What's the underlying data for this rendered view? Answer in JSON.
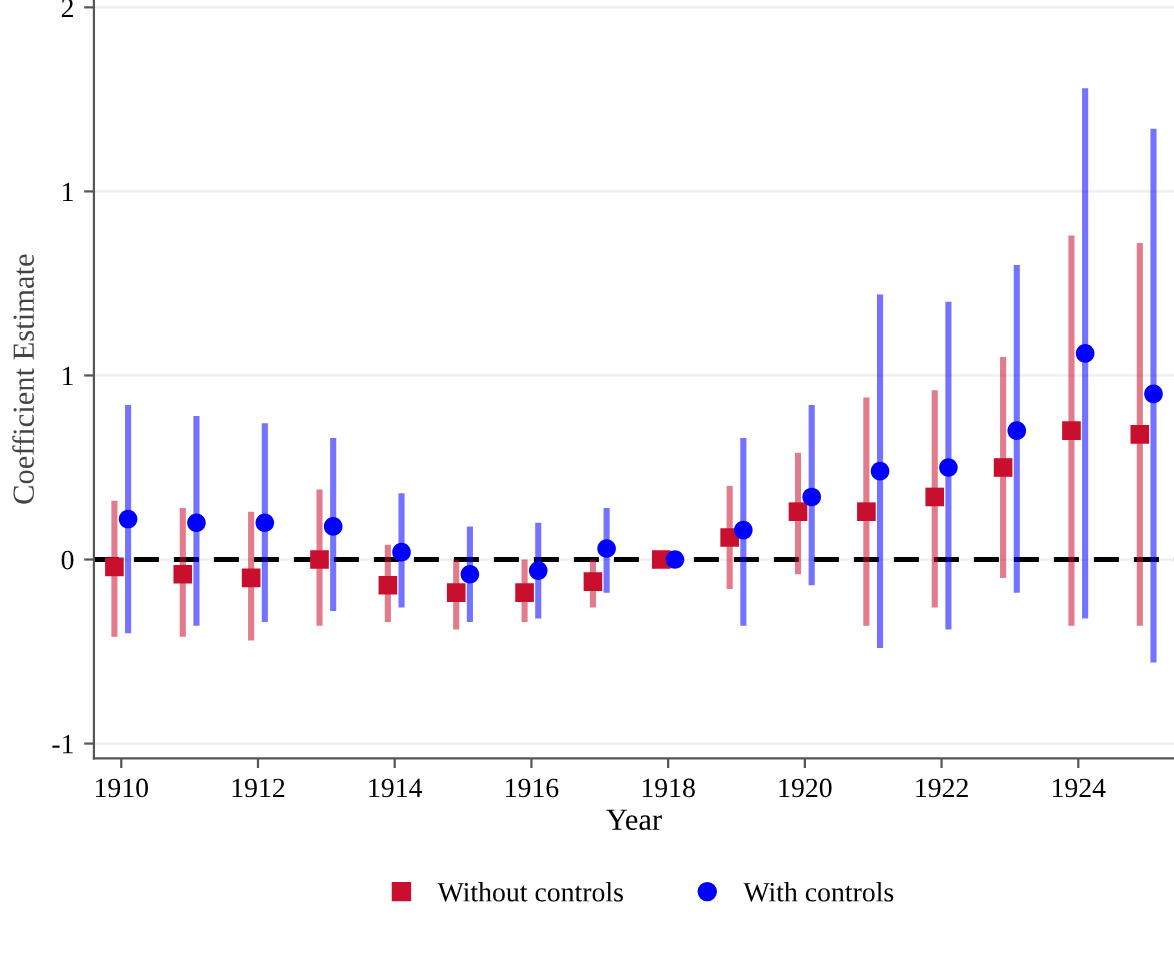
{
  "chart_data": {
    "type": "scatter",
    "xlabel": "Year",
    "ylabel": "Coefficient Estimate",
    "xlim": [
      1909.6,
      1925.4
    ],
    "xticks": [
      1910,
      1912,
      1914,
      1916,
      1918,
      1920,
      1922,
      1924
    ],
    "ylim": [
      -0.54,
      1.52
    ],
    "yticks": [
      {
        "value": -0.5,
        "label": "-1"
      },
      {
        "value": 0,
        "label": "0"
      },
      {
        "value": 0.5,
        "label": "1"
      },
      {
        "value": 1,
        "label": "1"
      },
      {
        "value": 1.5,
        "label": "2"
      }
    ],
    "grid": "y",
    "legend": "bottom",
    "ref_lines": [
      {
        "axis": "y",
        "value": 0,
        "color": "#000000",
        "line_style": "dashed"
      }
    ],
    "series": [
      {
        "name": "Without controls",
        "color": "#c8102e",
        "marker": "square",
        "x": [
          1909.9,
          1910.9,
          1911.9,
          1912.9,
          1913.9,
          1914.9,
          1915.9,
          1916.9,
          1917.9,
          1918.9,
          1919.9,
          1920.9,
          1921.9,
          1922.9,
          1923.9,
          1924.9
        ],
        "values": [
          -0.02,
          -0.04,
          -0.05,
          0.0,
          -0.07,
          -0.09,
          -0.09,
          -0.06,
          0.0,
          0.06,
          0.13,
          0.13,
          0.17,
          0.25,
          0.35,
          0.34
        ],
        "errors": [
          [
            -0.21,
            0.16
          ],
          [
            -0.21,
            0.14
          ],
          [
            -0.22,
            0.13
          ],
          [
            -0.18,
            0.19
          ],
          [
            -0.17,
            0.04
          ],
          [
            -0.19,
            0.0
          ],
          [
            -0.17,
            0.0
          ],
          [
            -0.13,
            0.0
          ],
          null,
          [
            -0.08,
            0.2
          ],
          [
            -0.04,
            0.29
          ],
          [
            -0.18,
            0.44
          ],
          [
            -0.13,
            0.46
          ],
          [
            -0.05,
            0.55
          ],
          [
            -0.18,
            0.88
          ],
          [
            -0.18,
            0.86
          ]
        ]
      },
      {
        "name": "With controls",
        "color": "#0000ff",
        "marker": "circle",
        "x": [
          1910.1,
          1911.1,
          1912.1,
          1913.1,
          1914.1,
          1915.1,
          1916.1,
          1917.1,
          1918.1,
          1919.1,
          1920.1,
          1921.1,
          1922.1,
          1923.1,
          1924.1,
          1925.1
        ],
        "values": [
          0.11,
          0.1,
          0.1,
          0.09,
          0.02,
          -0.04,
          -0.03,
          0.03,
          0.0,
          0.08,
          0.17,
          0.24,
          0.25,
          0.35,
          0.56,
          0.45
        ],
        "errors": [
          [
            -0.2,
            0.42
          ],
          [
            -0.18,
            0.39
          ],
          [
            -0.17,
            0.37
          ],
          [
            -0.14,
            0.33
          ],
          [
            -0.13,
            0.18
          ],
          [
            -0.17,
            0.09
          ],
          [
            -0.16,
            0.1
          ],
          [
            -0.09,
            0.14
          ],
          null,
          [
            -0.18,
            0.33
          ],
          [
            -0.07,
            0.42
          ],
          [
            -0.24,
            0.72
          ],
          [
            -0.19,
            0.7
          ],
          [
            -0.09,
            0.8
          ],
          [
            -0.16,
            1.28
          ],
          [
            -0.28,
            1.17
          ]
        ]
      }
    ]
  }
}
